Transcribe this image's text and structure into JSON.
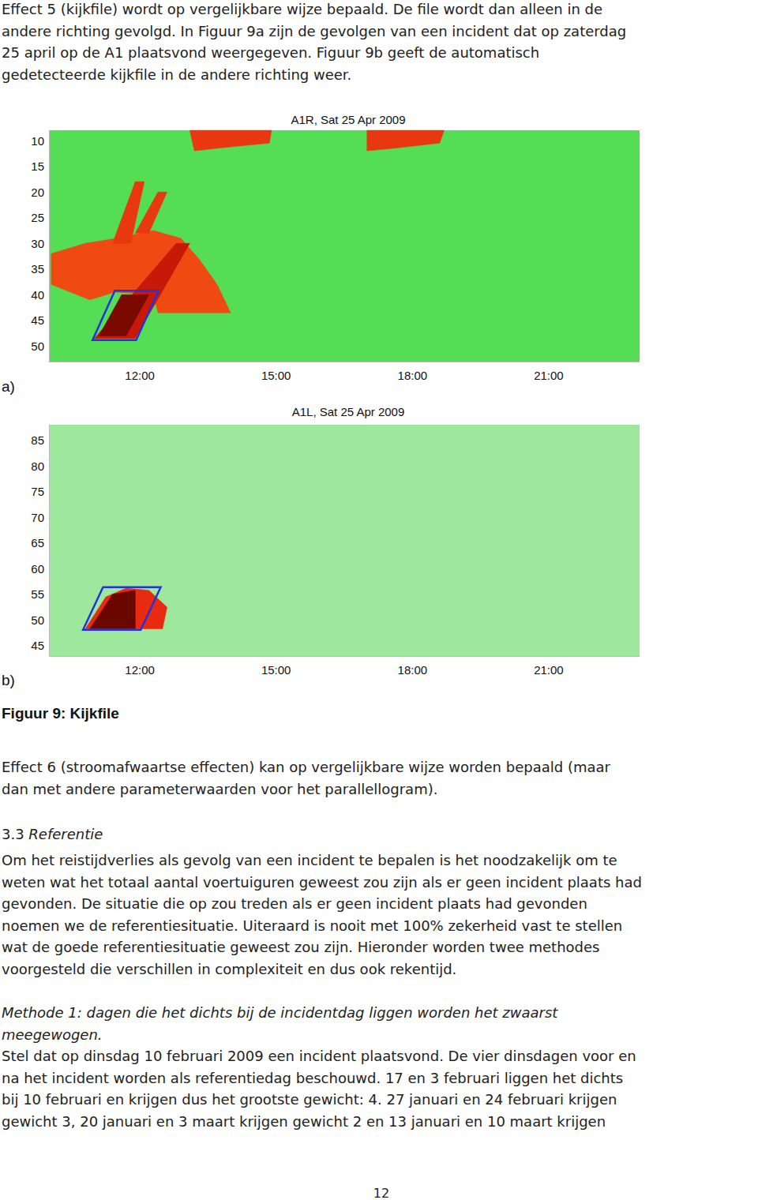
{
  "page": {
    "paragraph_1": [
      "Effect 5 (kijkfile) wordt op vergelijkbare wijze bepaald. De file wordt dan alleen in de",
      "andere richting gevolgd. In Figuur 9a zijn de gevolgen van een incident dat op zaterdag",
      "25 april op de A1 plaatsvond weergegeven. Figuur 9b geeft de automatisch",
      "gedetecteerde kijkfile in de andere richting weer."
    ],
    "panel_labels": [
      "a)",
      "b)"
    ],
    "caption": "Figuur 9: Kijkfile",
    "paragraph_2": [
      "Effect 6 (stroomafwaartse effecten) kan op vergelijkbare wijze worden bepaald (maar",
      "dan met andere parameterwaarden voor het parallellogram)."
    ],
    "heading": {
      "number": "3.3",
      "title": "Referentie"
    },
    "paragraph_3": [
      "Om het reistijdverlies als gevolg van een incident te bepalen is het noodzakelijk om te",
      "weten wat het totaal aantal voertuiguren geweest zou zijn als er geen incident plaats had",
      "gevonden. De situatie die op zou treden als er geen incident plaats had gevonden",
      "noemen we de referentiesituatie. Uiteraard is nooit met 100% zekerheid vast te stellen",
      "wat de goede referentiesituatie geweest zou zijn. Hieronder worden twee methodes",
      "voorgesteld die verschillen in complexiteit en dus ook rekentijd."
    ],
    "method_heading": [
      "Methode 1: dagen die het dichts bij de incidentdag liggen worden het zwaarst",
      "meegewogen."
    ],
    "paragraph_4": [
      "Stel dat op dinsdag 10 februari 2009 een incident plaatsvond. De vier dinsdagen voor en",
      "na het incident worden als referentiedag beschouwd. 17 en 3 februari liggen het dichts",
      "bij 10 februari en krijgen dus het grootste gewicht: 4. 27 januari en 24 februari krijgen",
      "gewicht 3, 20 januari en 3 maart krijgen gewicht 2 en 13 januari en 10 maart krijgen"
    ],
    "page_number": "12"
  },
  "chart_data": [
    {
      "type": "space-time",
      "title": "A1R, Sat 25 Apr 2009",
      "color": "#55dd55",
      "xlim": [
        10,
        23
      ],
      "xticks": [
        {
          "value": 12,
          "label": "12:00"
        },
        {
          "value": 15,
          "label": "15:00"
        },
        {
          "value": 18,
          "label": "18:00"
        },
        {
          "value": 21,
          "label": "21:00"
        }
      ],
      "ylim": [
        53,
        8
      ],
      "yticks": [
        10,
        15,
        20,
        25,
        30,
        35,
        40,
        45,
        50
      ],
      "series": [
        {
          "type": "polygon",
          "color": "#e8380f",
          "values": [
            [
              13.1,
              8
            ],
            [
              14.9,
              8
            ],
            [
              14.85,
              10.5
            ],
            [
              13.7,
              11.5
            ],
            [
              13.2,
              12
            ]
          ]
        },
        {
          "type": "polygon",
          "color": "#e8380f",
          "values": [
            [
              17.0,
              8
            ],
            [
              18.7,
              8
            ],
            [
              18.6,
              10.5
            ],
            [
              17.6,
              11.5
            ],
            [
              17.0,
              12
            ]
          ]
        },
        {
          "type": "polygon",
          "color": "#ee4a12",
          "values": [
            [
              10.05,
              32
            ],
            [
              10.8,
              30
            ],
            [
              11.5,
              29
            ],
            [
              12.3,
              27.5
            ],
            [
              12.9,
              29
            ],
            [
              13.3,
              33
            ],
            [
              13.7,
              38
            ],
            [
              14.0,
              43.5
            ],
            [
              12.4,
              43.5
            ],
            [
              12.3,
              40
            ],
            [
              11.45,
              39.5
            ],
            [
              10.9,
              41
            ],
            [
              10.05,
              38
            ]
          ]
        },
        {
          "type": "polygon",
          "color": "#e8380f",
          "values": [
            [
              11.4,
              30
            ],
            [
              11.9,
              18
            ],
            [
              12.1,
              18
            ],
            [
              11.8,
              30
            ]
          ]
        },
        {
          "type": "polygon",
          "color": "#e8380f",
          "values": [
            [
              11.9,
              28
            ],
            [
              12.4,
              20
            ],
            [
              12.6,
              20
            ],
            [
              12.2,
              28
            ]
          ]
        },
        {
          "type": "polygon",
          "color": "#c81808",
          "values": [
            [
              11.0,
              48.5
            ],
            [
              12.8,
              30
            ],
            [
              13.1,
              30
            ],
            [
              11.9,
              48.5
            ]
          ]
        },
        {
          "type": "polygon",
          "color": "#7a0a00",
          "values": [
            [
              11.1,
              48
            ],
            [
              11.6,
              40
            ],
            [
              12.2,
              40
            ],
            [
              11.7,
              48
            ]
          ]
        },
        {
          "type": "outline",
          "color": "#2233dd",
          "values": [
            [
              10.96,
              48.8
            ],
            [
              11.45,
              39.2
            ],
            [
              12.41,
              39.2
            ],
            [
              11.92,
              48.8
            ]
          ]
        }
      ]
    },
    {
      "type": "space-time",
      "title": "A1L, Sat 25 Apr 2009",
      "color": "#9ee89e",
      "xlim": [
        10,
        23
      ],
      "xticks": [
        {
          "value": 12,
          "label": "12:00"
        },
        {
          "value": 15,
          "label": "15:00"
        },
        {
          "value": 18,
          "label": "18:00"
        },
        {
          "value": 21,
          "label": "21:00"
        }
      ],
      "ylim": [
        43,
        88
      ],
      "yticks": [
        45,
        50,
        55,
        60,
        65,
        70,
        75,
        80,
        85
      ],
      "series": [
        {
          "type": "polygon",
          "color": "#e82a10",
          "values": [
            [
              10.8,
              48.3
            ],
            [
              11.25,
              54.5
            ],
            [
              11.7,
              56.2
            ],
            [
              12.2,
              55.8
            ],
            [
              12.6,
              52.5
            ],
            [
              12.5,
              48.3
            ]
          ]
        },
        {
          "type": "polygon",
          "color": "#6a0800",
          "values": [
            [
              10.9,
              48.3
            ],
            [
              11.4,
              55
            ],
            [
              11.9,
              55.8
            ],
            [
              11.9,
              48.3
            ]
          ]
        },
        {
          "type": "outline",
          "color": "#2233dd",
          "values": [
            [
              10.75,
              48.1
            ],
            [
              11.19,
              56.4
            ],
            [
              12.46,
              56.4
            ],
            [
              12.02,
              48.1
            ]
          ]
        }
      ]
    }
  ]
}
